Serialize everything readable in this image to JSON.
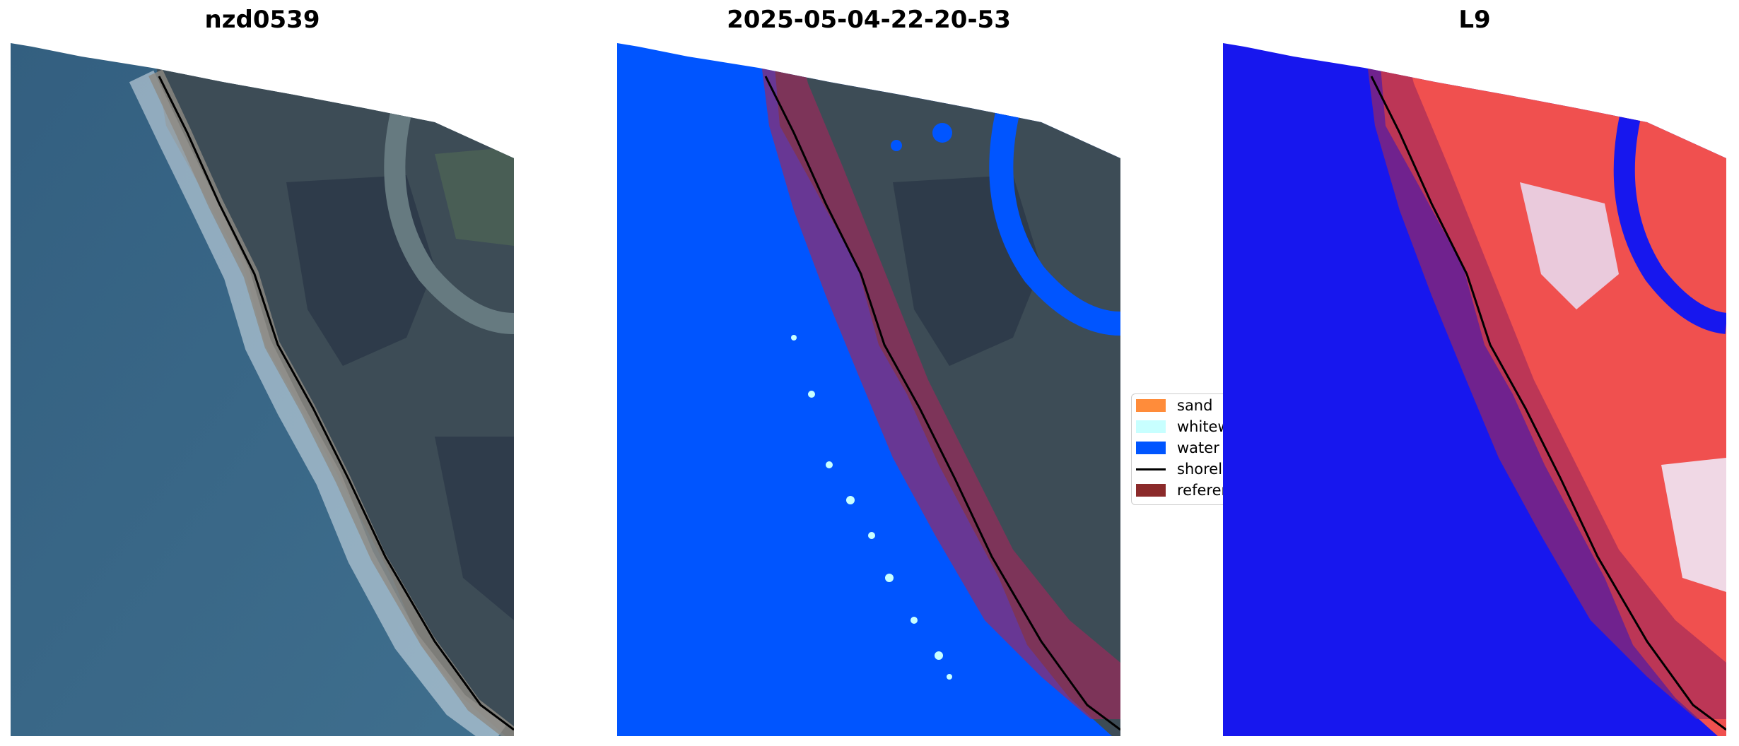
{
  "panels": [
    {
      "title": "nzd0539"
    },
    {
      "title": "2025-05-04-22-20-53"
    },
    {
      "title": "L9"
    }
  ],
  "legend": {
    "items": [
      {
        "label": "sand",
        "color": "#ff8c3a"
      },
      {
        "label": "whitewater",
        "color": "#c8ffff"
      },
      {
        "label": "water",
        "color": "#0055ff"
      },
      {
        "label": "shoreline",
        "color": "#000000"
      },
      {
        "label": "reference",
        "color": "#8b2a2a"
      }
    ]
  },
  "colors": {
    "ocean_rgb": "#3e6a8c",
    "land_rgb": "#3d4d57",
    "surf": "#dde8ef",
    "water_class": "#0055ff",
    "mndwi_water": "#1717ee",
    "mndwi_land": "#f0504f",
    "reference_buffer": "#a0285a",
    "shoreline": "#000000"
  }
}
